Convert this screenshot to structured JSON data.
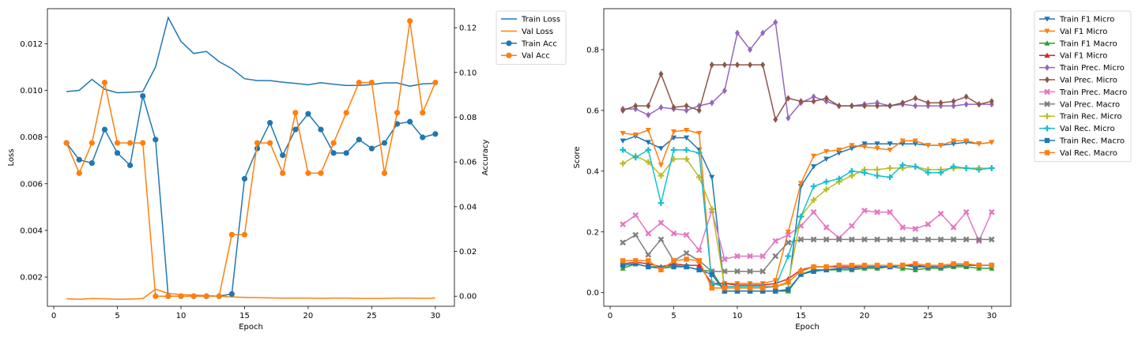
{
  "chart_data": [
    {
      "type": "line",
      "xlabel": "Epoch",
      "ylabel": "Loss",
      "y2label": "Accuracy",
      "xlim": [
        -0.5,
        31.5
      ],
      "ylim": [
        0.00075,
        0.0135
      ],
      "y2lim": [
        -0.0045,
        0.1285
      ],
      "xticks": [
        0,
        5,
        10,
        15,
        20,
        25,
        30
      ],
      "yticks": [
        0.002,
        0.004,
        0.006,
        0.008,
        0.01,
        0.012
      ],
      "y2ticks": [
        0.0,
        0.02,
        0.04,
        0.06,
        0.08,
        0.1,
        0.12
      ],
      "legend_position": "outside-top-right",
      "x": [
        1,
        2,
        3,
        4,
        5,
        6,
        7,
        8,
        9,
        10,
        11,
        12,
        13,
        14,
        15,
        16,
        17,
        18,
        19,
        20,
        21,
        22,
        23,
        24,
        25,
        26,
        27,
        28,
        29,
        30
      ],
      "series": [
        {
          "name": "Train Loss",
          "axis": "left",
          "color": "#1f77b4",
          "marker": "none",
          "values": [
            0.00995,
            0.01,
            0.01047,
            0.01005,
            0.0099,
            0.00992,
            0.00995,
            0.011,
            0.01312,
            0.0121,
            0.01158,
            0.01167,
            0.01123,
            0.01093,
            0.0105,
            0.01042,
            0.01042,
            0.01035,
            0.0103,
            0.01024,
            0.01033,
            0.01026,
            0.01021,
            0.01021,
            0.01025,
            0.01032,
            0.01032,
            0.01018,
            0.01028,
            0.0103
          ]
        },
        {
          "name": "Val Loss",
          "axis": "left",
          "color": "#ff7f0e",
          "marker": "none",
          "values": [
            0.00107,
            0.00105,
            0.00108,
            0.00107,
            0.00105,
            0.00106,
            0.00108,
            0.00148,
            0.0013,
            0.00125,
            0.00123,
            0.00121,
            0.00118,
            0.00115,
            0.00113,
            0.00112,
            0.00111,
            0.0011,
            0.0011,
            0.0011,
            0.00109,
            0.0011,
            0.0011,
            0.00109,
            0.00109,
            0.00109,
            0.0011,
            0.0011,
            0.00109,
            0.0011
          ]
        },
        {
          "name": "Train Acc",
          "axis": "right",
          "color": "#1f77b4",
          "marker": "circle",
          "values": [
            0.0685,
            0.061,
            0.0595,
            0.0745,
            0.064,
            0.0585,
            0.0895,
            0.07,
            0.0,
            0.0,
            0.0,
            0.0,
            0.0,
            0.001,
            0.0525,
            0.066,
            0.0775,
            0.063,
            0.0745,
            0.0815,
            0.0745,
            0.064,
            0.064,
            0.07,
            0.066,
            0.0685,
            0.077,
            0.078,
            0.071,
            0.0725
          ]
        },
        {
          "name": "Val Acc",
          "axis": "right",
          "color": "#ff7f0e",
          "marker": "circle",
          "values": [
            0.0685,
            0.055,
            0.0685,
            0.0955,
            0.0685,
            0.0685,
            0.0685,
            0.0,
            0.0,
            0.0,
            0.0,
            0.0,
            0.0,
            0.0275,
            0.0275,
            0.0685,
            0.0685,
            0.055,
            0.082,
            0.055,
            0.055,
            0.0685,
            0.082,
            0.0955,
            0.0955,
            0.055,
            0.082,
            0.123,
            0.082,
            0.0955
          ]
        }
      ]
    },
    {
      "type": "line",
      "xlabel": "Epoch",
      "ylabel": "Score",
      "xlim": [
        -0.5,
        31.5
      ],
      "ylim": [
        -0.045,
        0.935
      ],
      "xticks": [
        0,
        5,
        10,
        15,
        20,
        25,
        30
      ],
      "yticks": [
        0.0,
        0.2,
        0.4,
        0.6,
        0.8
      ],
      "legend_position": "outside-top-right",
      "x": [
        1,
        2,
        3,
        4,
        5,
        6,
        7,
        8,
        9,
        10,
        11,
        12,
        13,
        14,
        15,
        16,
        17,
        18,
        19,
        20,
        21,
        22,
        23,
        24,
        25,
        26,
        27,
        28,
        29,
        30
      ],
      "series": [
        {
          "name": "Train F1 Micro",
          "color": "#1f77b4",
          "marker": "tri_down",
          "values": [
            0.5,
            0.515,
            0.495,
            0.475,
            0.51,
            0.51,
            0.47,
            0.38,
            0.005,
            0.005,
            0.005,
            0.005,
            0.005,
            0.01,
            0.35,
            0.415,
            0.44,
            0.46,
            0.475,
            0.49,
            0.49,
            0.49,
            0.49,
            0.49,
            0.485,
            0.485,
            0.49,
            0.495,
            0.49,
            0.495
          ]
        },
        {
          "name": "Val F1 Micro",
          "color": "#ff7f0e",
          "marker": "tri_down",
          "values": [
            0.525,
            0.52,
            0.535,
            0.42,
            0.53,
            0.535,
            0.525,
            0.03,
            0.03,
            0.03,
            0.03,
            0.03,
            0.04,
            0.2,
            0.36,
            0.45,
            0.465,
            0.47,
            0.485,
            0.48,
            0.475,
            0.47,
            0.5,
            0.5,
            0.485,
            0.485,
            0.5,
            0.5,
            0.49,
            0.495
          ]
        },
        {
          "name": "Train F1 Macro",
          "color": "#2ca02c",
          "marker": "tri_up",
          "values": [
            0.08,
            0.095,
            0.085,
            0.085,
            0.09,
            0.085,
            0.075,
            0.07,
            0.005,
            0.005,
            0.005,
            0.005,
            0.005,
            0.005,
            0.06,
            0.075,
            0.075,
            0.075,
            0.075,
            0.08,
            0.08,
            0.085,
            0.08,
            0.075,
            0.08,
            0.08,
            0.085,
            0.085,
            0.08,
            0.08
          ]
        },
        {
          "name": "Val F1 Micro",
          "color": "#d62728",
          "marker": "tri_up",
          "values": [
            0.095,
            0.1,
            0.095,
            0.085,
            0.095,
            0.09,
            0.09,
            0.03,
            0.03,
            0.025,
            0.025,
            0.025,
            0.03,
            0.045,
            0.075,
            0.085,
            0.085,
            0.085,
            0.085,
            0.085,
            0.085,
            0.085,
            0.09,
            0.09,
            0.085,
            0.085,
            0.09,
            0.09,
            0.09,
            0.09
          ]
        },
        {
          "name": "Train Prec. Micro",
          "color": "#9467bd",
          "marker": "diamond",
          "values": [
            0.605,
            0.605,
            0.585,
            0.61,
            0.605,
            0.6,
            0.615,
            0.625,
            0.665,
            0.855,
            0.8,
            0.855,
            0.89,
            0.575,
            0.625,
            0.645,
            0.63,
            0.615,
            0.615,
            0.62,
            0.625,
            0.615,
            0.62,
            0.615,
            0.615,
            0.615,
            0.615,
            0.62,
            0.62,
            0.62
          ]
        },
        {
          "name": "Val Prec. Micro",
          "color": "#8c564b",
          "marker": "diamond",
          "values": [
            0.6,
            0.615,
            0.615,
            0.72,
            0.61,
            0.615,
            0.6,
            0.75,
            0.75,
            0.75,
            0.75,
            0.75,
            0.57,
            0.64,
            0.63,
            0.63,
            0.64,
            0.615,
            0.615,
            0.615,
            0.615,
            0.615,
            0.625,
            0.64,
            0.625,
            0.625,
            0.63,
            0.645,
            0.62,
            0.63
          ]
        },
        {
          "name": "Train Prec. Macro",
          "color": "#e377c2",
          "marker": "x",
          "values": [
            0.225,
            0.255,
            0.195,
            0.23,
            0.195,
            0.19,
            0.14,
            0.27,
            0.11,
            0.12,
            0.12,
            0.12,
            0.17,
            0.19,
            0.22,
            0.265,
            0.215,
            0.18,
            0.22,
            0.27,
            0.265,
            0.265,
            0.215,
            0.21,
            0.225,
            0.26,
            0.215,
            0.265,
            0.17,
            0.265
          ]
        },
        {
          "name": "Val Prec. Macro",
          "color": "#7f7f7f",
          "marker": "x",
          "values": [
            0.165,
            0.19,
            0.125,
            0.175,
            0.105,
            0.13,
            0.105,
            0.07,
            0.07,
            0.07,
            0.07,
            0.07,
            0.12,
            0.165,
            0.175,
            0.175,
            0.175,
            0.175,
            0.175,
            0.175,
            0.175,
            0.175,
            0.175,
            0.175,
            0.175,
            0.175,
            0.175,
            0.175,
            0.175,
            0.175
          ]
        },
        {
          "name": "Train Rec. Micro",
          "color": "#bcbd22",
          "marker": "plus",
          "values": [
            0.425,
            0.45,
            0.43,
            0.385,
            0.44,
            0.44,
            0.38,
            0.275,
            0.02,
            0.02,
            0.02,
            0.02,
            0.02,
            0.03,
            0.25,
            0.305,
            0.34,
            0.365,
            0.385,
            0.405,
            0.405,
            0.41,
            0.41,
            0.415,
            0.405,
            0.405,
            0.41,
            0.41,
            0.41,
            0.41
          ]
        },
        {
          "name": "Val Rec. Micro",
          "color": "#17becf",
          "marker": "plus",
          "values": [
            0.47,
            0.445,
            0.47,
            0.295,
            0.47,
            0.47,
            0.46,
            0.03,
            0.02,
            0.02,
            0.02,
            0.02,
            0.02,
            0.12,
            0.25,
            0.35,
            0.365,
            0.375,
            0.4,
            0.395,
            0.385,
            0.38,
            0.42,
            0.415,
            0.395,
            0.395,
            0.415,
            0.41,
            0.405,
            0.41
          ]
        },
        {
          "name": "Train Rec. Macro",
          "color": "#1f77b4",
          "marker": "square",
          "values": [
            0.09,
            0.095,
            0.085,
            0.08,
            0.085,
            0.085,
            0.075,
            0.06,
            0.005,
            0.005,
            0.005,
            0.005,
            0.005,
            0.01,
            0.06,
            0.07,
            0.075,
            0.08,
            0.08,
            0.085,
            0.085,
            0.085,
            0.09,
            0.085,
            0.085,
            0.085,
            0.09,
            0.09,
            0.09,
            0.09
          ]
        },
        {
          "name": "Val Rec. Macro",
          "color": "#ff7f0e",
          "marker": "square",
          "values": [
            0.105,
            0.105,
            0.105,
            0.075,
            0.105,
            0.11,
            0.105,
            0.015,
            0.015,
            0.015,
            0.015,
            0.015,
            0.02,
            0.035,
            0.07,
            0.085,
            0.085,
            0.09,
            0.09,
            0.09,
            0.09,
            0.09,
            0.09,
            0.095,
            0.09,
            0.09,
            0.095,
            0.095,
            0.09,
            0.09
          ]
        }
      ]
    }
  ]
}
